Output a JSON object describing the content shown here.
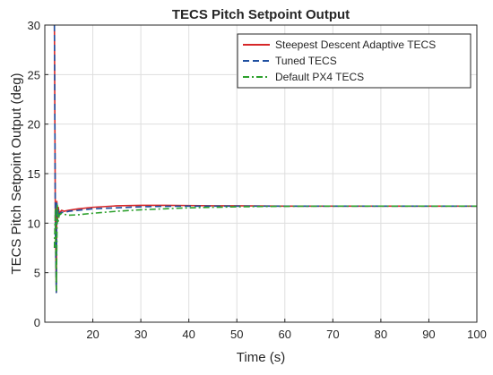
{
  "chart_data": {
    "type": "line",
    "title": "TECS Pitch Setpoint Output",
    "xlabel": "Time (s)",
    "ylabel": "TECS Pitch Setpoint Output (deg)",
    "xlim": [
      10,
      100
    ],
    "ylim": [
      0,
      30
    ],
    "xticks": [
      20,
      30,
      40,
      50,
      60,
      70,
      80,
      90,
      100
    ],
    "yticks": [
      0,
      5,
      10,
      15,
      20,
      25,
      30
    ],
    "grid": true,
    "legend_position": "top-right",
    "series": [
      {
        "name": "Steepest Descent Adaptive TECS",
        "color": "#d62728",
        "dash": "solid",
        "x": [
          12,
          12.2,
          12.4,
          12.5,
          12.6,
          12.8,
          13,
          13.5,
          14,
          15,
          17,
          20,
          25,
          30,
          35,
          40,
          45,
          50,
          60,
          70,
          80,
          90,
          100
        ],
        "y": [
          30,
          9.5,
          3,
          12.2,
          10.2,
          11.6,
          11.0,
          11.3,
          11.2,
          11.3,
          11.45,
          11.6,
          11.75,
          11.8,
          11.8,
          11.78,
          11.75,
          11.75,
          11.72,
          11.72,
          11.72,
          11.72,
          11.72
        ]
      },
      {
        "name": "Tuned TECS",
        "color": "#1f4fa0",
        "dash": "dashed",
        "x": [
          12,
          12.2,
          12.4,
          12.5,
          12.6,
          12.8,
          13,
          13.5,
          14,
          15,
          17,
          20,
          25,
          30,
          35,
          40,
          45,
          50,
          60,
          70,
          80,
          90,
          100
        ],
        "y": [
          30,
          9.0,
          3,
          12.0,
          10.0,
          11.4,
          10.9,
          11.1,
          11.05,
          11.2,
          11.3,
          11.45,
          11.55,
          11.65,
          11.7,
          11.72,
          11.72,
          11.72,
          11.72,
          11.72,
          11.72,
          11.72,
          11.72
        ]
      },
      {
        "name": "Default PX4 TECS",
        "color": "#2ca02c",
        "dash": "dashdot",
        "x": [
          12,
          12.2,
          12.4,
          12.6,
          12.8,
          13,
          13.5,
          14,
          15,
          17,
          20,
          25,
          30,
          35,
          40,
          45,
          50,
          55,
          60,
          70,
          80,
          90,
          100
        ],
        "y": [
          7.5,
          11.5,
          3.2,
          11.9,
          10.2,
          10.8,
          11.0,
          10.9,
          10.8,
          10.85,
          11.0,
          11.2,
          11.35,
          11.45,
          11.55,
          11.6,
          11.65,
          11.68,
          11.7,
          11.72,
          11.72,
          11.72,
          11.72
        ]
      }
    ]
  }
}
